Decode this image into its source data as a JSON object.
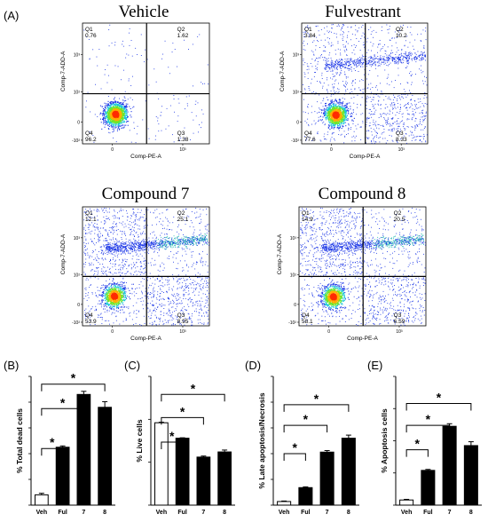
{
  "figure_label": "(A)",
  "flow": {
    "x_axis_label": "Comp-PE-A",
    "y_axis_label": "Comp-7-ADD-A",
    "y_ticks": [
      "10³",
      "10²",
      "0",
      "-10²"
    ],
    "x_ticks": [
      "0",
      "10³"
    ],
    "quadrant_names": [
      "Q1",
      "Q2",
      "Q3",
      "Q4"
    ],
    "panels": [
      {
        "title": "Vehicle",
        "q1": "0.76",
        "q2": "1.62",
        "q3": "1.38",
        "q4": "96.2"
      },
      {
        "title": "Fulvestrant",
        "q1": "3.84",
        "q2": "10.2",
        "q3": "8.33",
        "q4": "77.6"
      },
      {
        "title": "Compound 7",
        "q1": "12.1",
        "q2": "25.1",
        "q3": "8.95",
        "q4": "53.9"
      },
      {
        "title": "Compound 8",
        "q1": "14.9",
        "q2": "20.5",
        "q3": "6.59",
        "q4": "58.1"
      }
    ]
  },
  "colors": {
    "dots": "#1a35e6",
    "hot": "#ff2a00",
    "bar_fill": "#000000",
    "veh_fill": "#ffffff"
  },
  "chart_data": [
    {
      "type": "bar",
      "panel_label": "(B)",
      "ylabel": "% Total dead cells",
      "categories": [
        "Veh",
        "Ful",
        "7",
        "8"
      ],
      "values": [
        4,
        22.5,
        43,
        38
      ],
      "errors": [
        0.6,
        0.5,
        1.2,
        2.2
      ],
      "ylim": [
        0,
        50
      ],
      "yticks": [
        0,
        10,
        20,
        30,
        40,
        50
      ],
      "significance": [
        {
          "from": "Veh",
          "to": "Ful",
          "label": "*"
        },
        {
          "from": "Veh",
          "to": "7",
          "label": "*"
        },
        {
          "from": "Veh",
          "to": "8",
          "label": "*"
        }
      ]
    },
    {
      "type": "bar",
      "panel_label": "(C)",
      "ylabel": "% Live cells",
      "categories": [
        "Veh",
        "Ful",
        "7",
        "8"
      ],
      "values": [
        96,
        78,
        56,
        62
      ],
      "errors": [
        0.6,
        0.5,
        1.2,
        2.2
      ],
      "ylim": [
        0,
        150
      ],
      "yticks": [
        0,
        50,
        100,
        150
      ],
      "significance": [
        {
          "from": "Veh",
          "to": "Ful",
          "label": "*"
        },
        {
          "from": "Veh",
          "to": "7",
          "label": "*"
        },
        {
          "from": "Veh",
          "to": "8",
          "label": "*"
        }
      ]
    },
    {
      "type": "bar",
      "panel_label": "(D)",
      "ylabel": "% Late apoptosis/Necrosis",
      "categories": [
        "Veh",
        "Ful",
        "7",
        "8"
      ],
      "values": [
        0.7,
        3.4,
        10.3,
        13
      ],
      "errors": [
        0.1,
        0.15,
        0.3,
        0.6
      ],
      "ylim": [
        0,
        25
      ],
      "yticks": [
        0,
        5,
        10,
        15,
        20,
        25
      ],
      "significance": [
        {
          "from": "Veh",
          "to": "Ful",
          "label": "*"
        },
        {
          "from": "Veh",
          "to": "7",
          "label": "*"
        },
        {
          "from": "Veh",
          "to": "8",
          "label": "*"
        }
      ]
    },
    {
      "type": "bar",
      "panel_label": "(E)",
      "ylabel": "% Apoptosis cells",
      "categories": [
        "Veh",
        "Ful",
        "7",
        "8"
      ],
      "values": [
        1.6,
        10.8,
        24.5,
        18.5
      ],
      "errors": [
        0.2,
        0.3,
        0.8,
        1.2
      ],
      "ylim": [
        0,
        40
      ],
      "yticks": [
        0,
        10,
        20,
        30,
        40
      ],
      "significance": [
        {
          "from": "Veh",
          "to": "Ful",
          "label": "*"
        },
        {
          "from": "Veh",
          "to": "7",
          "label": "*"
        },
        {
          "from": "Veh",
          "to": "8",
          "label": "*"
        }
      ]
    }
  ]
}
